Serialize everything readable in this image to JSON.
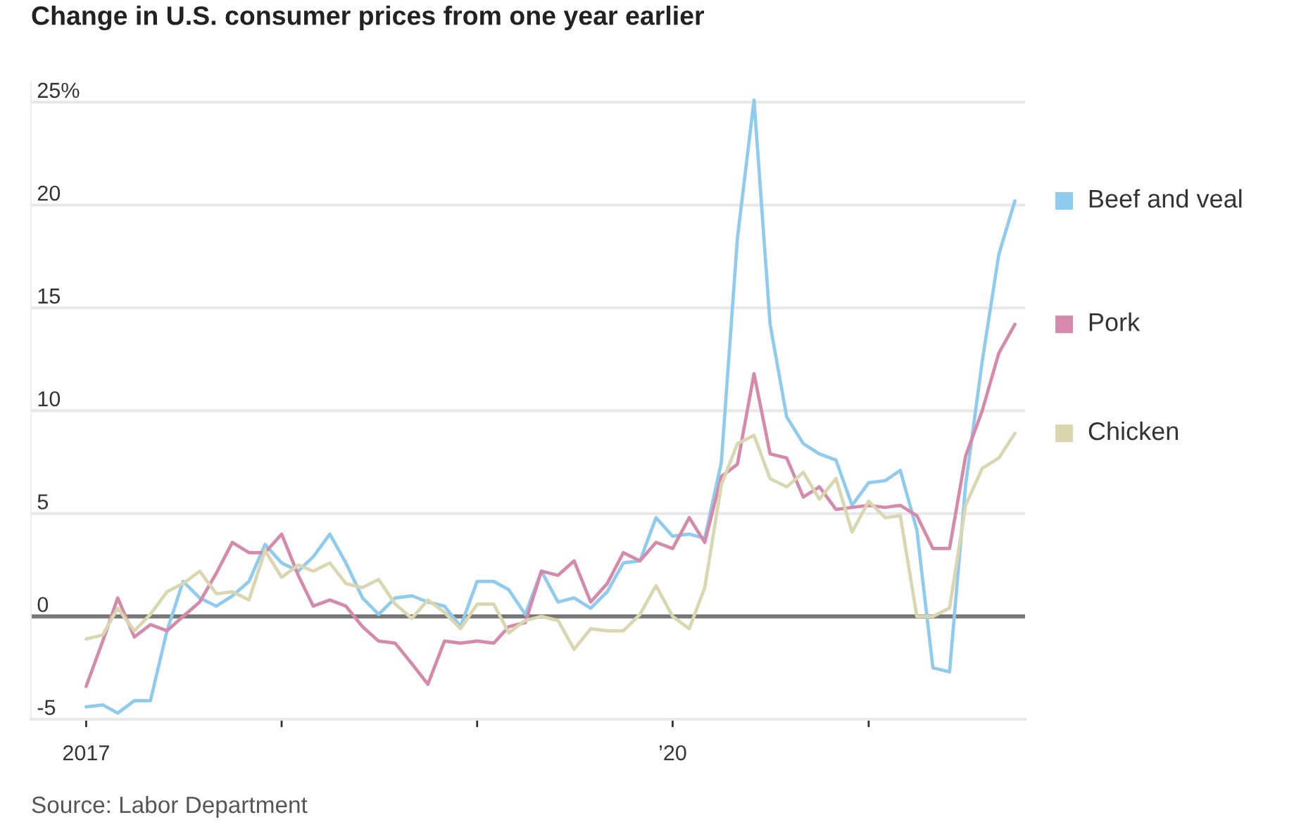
{
  "chart_data": {
    "type": "line",
    "title": "Change in U.S. consumer prices from one year earlier",
    "annotations": [
      "Source: Labor Department"
    ],
    "x": [
      "2017-01",
      "2017-02",
      "2017-03",
      "2017-04",
      "2017-05",
      "2017-06",
      "2017-07",
      "2017-08",
      "2017-09",
      "2017-10",
      "2017-11",
      "2017-12",
      "2018-01",
      "2018-02",
      "2018-03",
      "2018-04",
      "2018-05",
      "2018-06",
      "2018-07",
      "2018-08",
      "2018-09",
      "2018-10",
      "2018-11",
      "2018-12",
      "2019-01",
      "2019-02",
      "2019-03",
      "2019-04",
      "2019-05",
      "2019-06",
      "2019-07",
      "2019-08",
      "2019-09",
      "2019-10",
      "2019-11",
      "2019-12",
      "2020-01",
      "2020-02",
      "2020-03",
      "2020-04",
      "2020-05",
      "2020-06",
      "2020-07",
      "2020-08",
      "2020-09",
      "2020-10",
      "2020-11",
      "2020-12",
      "2021-01",
      "2021-02",
      "2021-03",
      "2021-04",
      "2021-05",
      "2021-06",
      "2021-07",
      "2021-08",
      "2021-09",
      "2021-10"
    ],
    "series": [
      {
        "name": "Beef and veal",
        "color": "#8ecbef",
        "values": [
          -4.4,
          -4.3,
          -4.7,
          -4.1,
          -4.1,
          -0.7,
          1.7,
          0.9,
          0.5,
          1.0,
          1.7,
          3.5,
          2.6,
          2.2,
          2.9,
          4.0,
          2.6,
          0.9,
          0.1,
          0.9,
          1.0,
          0.7,
          0.5,
          -0.5,
          1.7,
          1.7,
          1.3,
          0.1,
          2.2,
          0.7,
          0.9,
          0.4,
          1.2,
          2.6,
          2.7,
          4.8,
          3.9,
          4.0,
          3.8,
          7.5,
          18.4,
          25.1,
          14.2,
          9.7,
          8.4,
          7.9,
          7.6,
          5.4,
          6.5,
          6.6,
          7.1,
          4.2,
          -2.5,
          -2.7,
          6.4,
          12.4,
          17.6,
          20.2
        ]
      },
      {
        "name": "Pork",
        "color": "#d68aab",
        "values": [
          -3.4,
          -1.2,
          0.9,
          -1.0,
          -0.4,
          -0.7,
          0.0,
          0.7,
          2.1,
          3.6,
          3.1,
          3.1,
          4.0,
          2.0,
          0.5,
          0.8,
          0.5,
          -0.5,
          -1.2,
          -1.3,
          -2.3,
          -3.3,
          -1.2,
          -1.3,
          -1.2,
          -1.3,
          -0.5,
          -0.3,
          2.2,
          2.0,
          2.7,
          0.7,
          1.6,
          3.1,
          2.7,
          3.6,
          3.3,
          4.8,
          3.6,
          6.8,
          7.4,
          11.8,
          7.9,
          7.7,
          5.8,
          6.3,
          5.2,
          5.3,
          5.4,
          5.3,
          5.4,
          4.9,
          3.3,
          3.3,
          7.8,
          10.0,
          12.8,
          14.2
        ]
      },
      {
        "name": "Chicken",
        "color": "#dad6b0",
        "values": [
          -1.1,
          -0.9,
          0.4,
          -0.7,
          0.1,
          1.2,
          1.6,
          2.2,
          1.1,
          1.2,
          0.8,
          3.2,
          1.9,
          2.5,
          2.2,
          2.6,
          1.6,
          1.4,
          1.8,
          0.6,
          -0.1,
          0.8,
          0.2,
          -0.6,
          0.6,
          0.6,
          -0.8,
          -0.2,
          0.0,
          -0.2,
          -1.6,
          -0.6,
          -0.7,
          -0.7,
          0.1,
          1.5,
          0.0,
          -0.6,
          1.4,
          6.4,
          8.4,
          8.8,
          6.7,
          6.3,
          7.0,
          5.7,
          6.7,
          4.1,
          5.6,
          4.8,
          4.9,
          0.0,
          0.0,
          0.4,
          5.4,
          7.2,
          7.7,
          8.9
        ]
      }
    ],
    "xlim": [
      "2016-09-20",
      "2021-10-20"
    ],
    "xticks": [
      {
        "value": "2017-01-01",
        "label": "2017"
      },
      {
        "value": "2018-01-01",
        "label": null
      },
      {
        "value": "2019-01-01",
        "label": null
      },
      {
        "value": "2020-01-01",
        "label": "’20"
      },
      {
        "value": "2021-01-01",
        "label": null
      }
    ],
    "ylim": [
      -5,
      26
    ],
    "yticks": [
      -5,
      0,
      5,
      10,
      15,
      20,
      {
        "value": 25,
        "label": "25%"
      }
    ],
    "grid": "y",
    "legend": "right",
    "ref_lines": [
      {
        "axis": "y",
        "value": 0,
        "color": "#777777"
      }
    ]
  }
}
